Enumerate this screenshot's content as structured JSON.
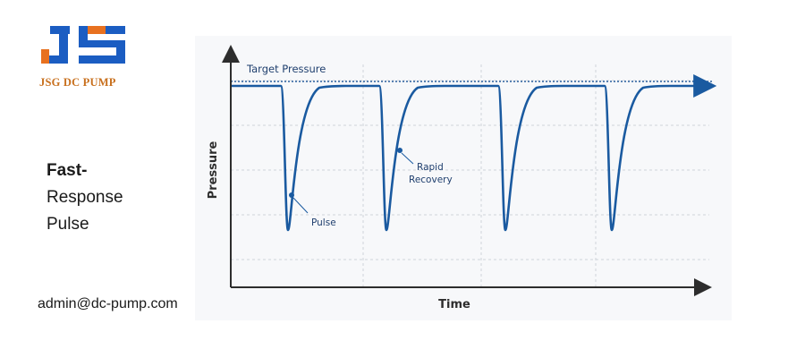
{
  "logo": {
    "text": "JSG DC PUMP",
    "colors": {
      "blue": "#1b5dc2",
      "orange": "#e8711f"
    }
  },
  "feature": {
    "title_line1": "Fast-",
    "title_line2": "Response",
    "title_line3": "Pulse"
  },
  "contact": {
    "email": "admin@dc-pump.com"
  },
  "diagram": {
    "target_label": "Target Pressure",
    "y_axis_label": "Pressure",
    "x_axis_label": "Time",
    "annotation_pulse": "Pulse",
    "annotation_recovery_line1": "Rapid",
    "annotation_recovery_line2": "Recovery",
    "pulse_count": 4,
    "colors": {
      "curve": "#1a5aa0",
      "target_line": "#2a5f9e",
      "axis": "#2d2d2d",
      "grid": "#cfd4da",
      "label": "#1f3f6e"
    }
  }
}
